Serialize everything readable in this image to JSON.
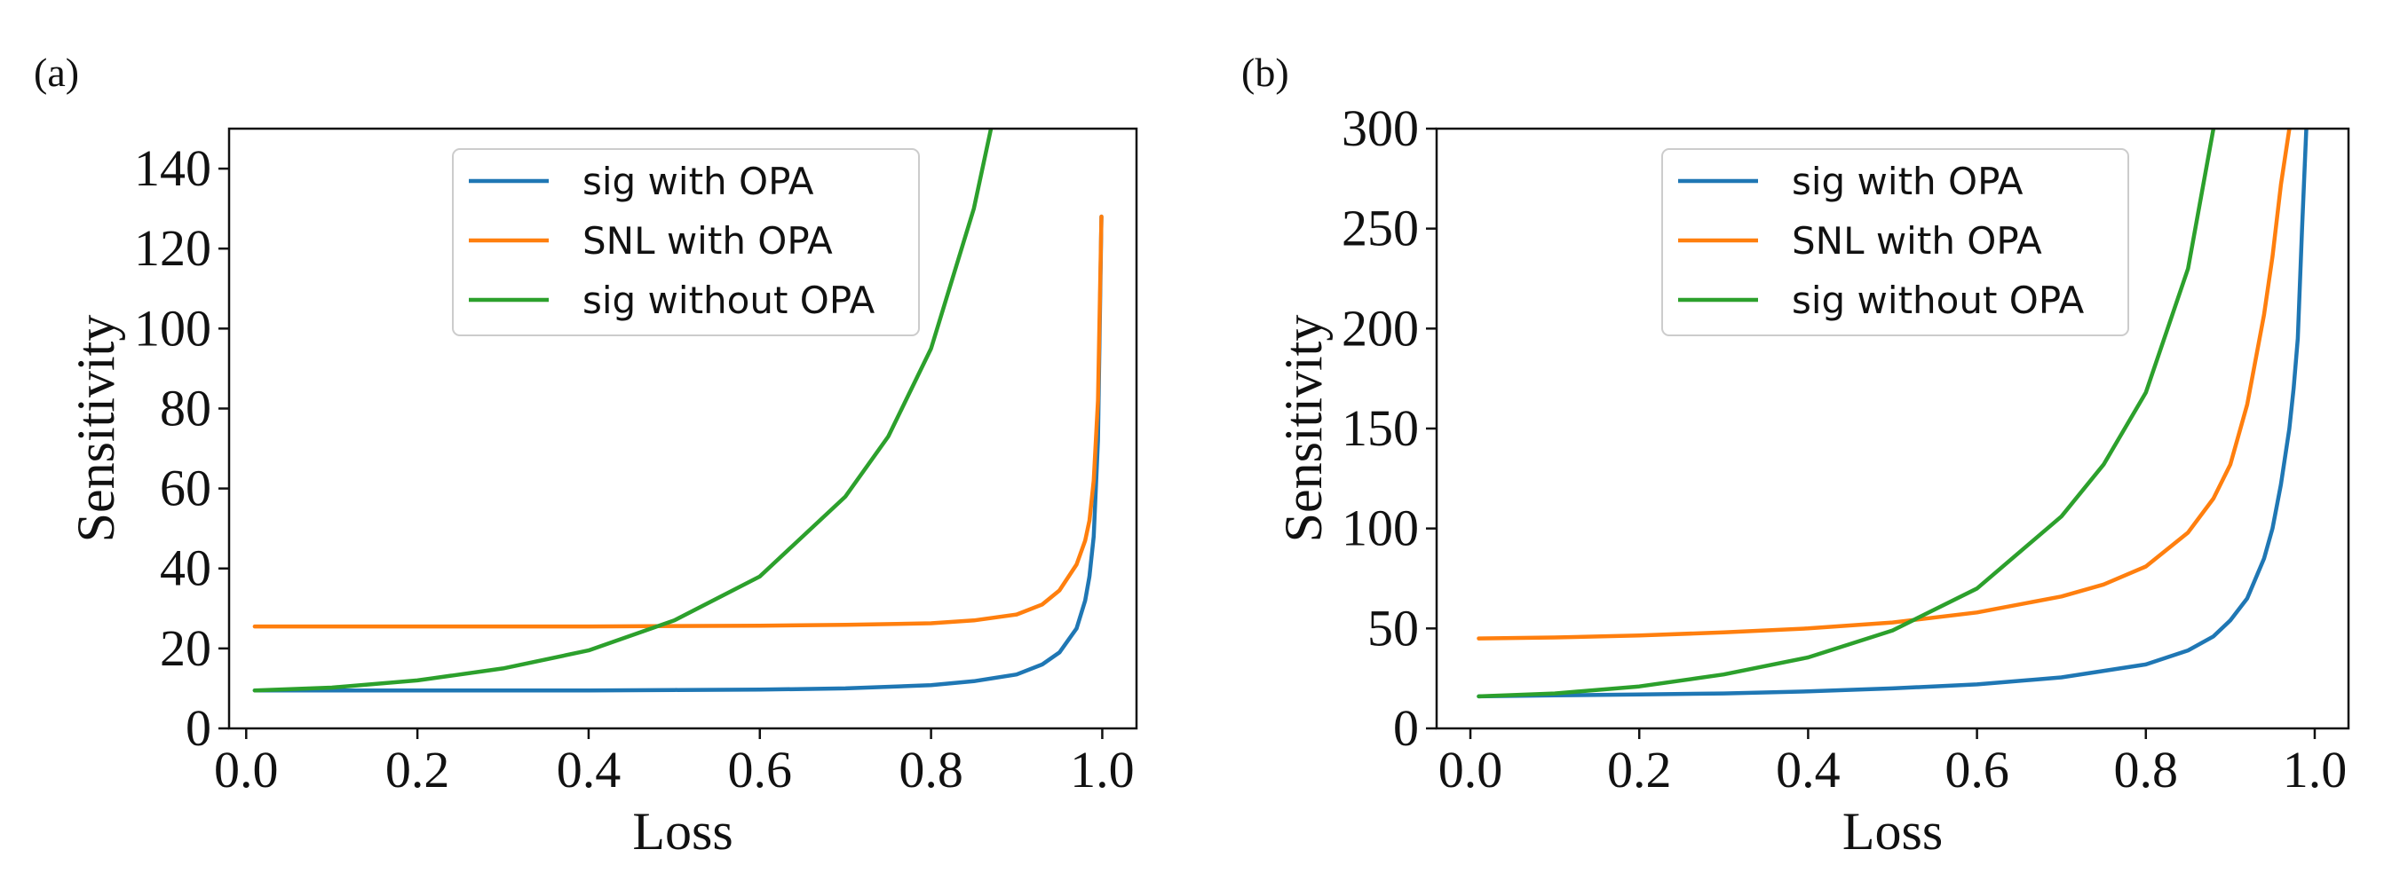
{
  "chart_data": [
    {
      "panel_label": "(a)",
      "type": "line",
      "xlabel": "Loss",
      "ylabel": "Sensitivity",
      "xlim": [
        -0.02,
        1.04
      ],
      "ylim": [
        0,
        150
      ],
      "xticks": [
        0.0,
        0.2,
        0.4,
        0.6,
        0.8,
        1.0
      ],
      "xtick_labels": [
        "0.0",
        "0.2",
        "0.4",
        "0.6",
        "0.8",
        "1.0"
      ],
      "yticks": [
        0,
        20,
        40,
        60,
        80,
        100,
        120,
        140
      ],
      "ytick_labels": [
        "0",
        "20",
        "40",
        "60",
        "80",
        "100",
        "120",
        "140"
      ],
      "legend_position": "top-center",
      "grid": false,
      "series": [
        {
          "name": "sig with OPA",
          "color": "#1f77b4",
          "x": [
            0.01,
            0.1,
            0.2,
            0.3,
            0.4,
            0.5,
            0.6,
            0.7,
            0.8,
            0.85,
            0.9,
            0.93,
            0.95,
            0.97,
            0.98,
            0.985,
            0.99,
            0.995,
            0.999
          ],
          "y": [
            9.5,
            9.5,
            9.5,
            9.5,
            9.5,
            9.6,
            9.7,
            10.0,
            10.8,
            11.8,
            13.5,
            16.0,
            19.0,
            25.0,
            32.0,
            38.0,
            48.0,
            72.0,
            128.0
          ]
        },
        {
          "name": "SNL with OPA",
          "color": "#ff7f0e",
          "x": [
            0.01,
            0.1,
            0.2,
            0.3,
            0.4,
            0.5,
            0.6,
            0.7,
            0.8,
            0.85,
            0.9,
            0.93,
            0.95,
            0.97,
            0.98,
            0.985,
            0.99,
            0.995,
            0.999
          ],
          "y": [
            25.5,
            25.5,
            25.5,
            25.5,
            25.5,
            25.6,
            25.7,
            25.9,
            26.3,
            27.0,
            28.5,
            31.0,
            34.5,
            41.0,
            47.0,
            52.0,
            62.0,
            82.0,
            128.0
          ]
        },
        {
          "name": "sig without OPA",
          "color": "#2ca02c",
          "x": [
            0.01,
            0.1,
            0.2,
            0.3,
            0.4,
            0.5,
            0.6,
            0.7,
            0.75,
            0.8,
            0.85,
            0.87
          ],
          "y": [
            9.5,
            10.2,
            12.0,
            15.0,
            19.5,
            27.0,
            38.0,
            58.0,
            73.0,
            95.0,
            130.0,
            150.0
          ]
        }
      ]
    },
    {
      "panel_label": "(b)",
      "type": "line",
      "xlabel": "Loss",
      "ylabel": "Sensitivity",
      "xlim": [
        -0.04,
        1.04
      ],
      "ylim": [
        0,
        300
      ],
      "xticks": [
        0.0,
        0.2,
        0.4,
        0.6,
        0.8,
        1.0
      ],
      "xtick_labels": [
        "0.0",
        "0.2",
        "0.4",
        "0.6",
        "0.8",
        "1.0"
      ],
      "yticks": [
        0,
        50,
        100,
        150,
        200,
        250,
        300
      ],
      "ytick_labels": [
        "0",
        "50",
        "100",
        "150",
        "200",
        "250",
        "300"
      ],
      "legend_position": "top-center",
      "grid": false,
      "series": [
        {
          "name": "sig with OPA",
          "color": "#1f77b4",
          "x": [
            0.01,
            0.1,
            0.2,
            0.3,
            0.4,
            0.5,
            0.6,
            0.7,
            0.8,
            0.85,
            0.88,
            0.9,
            0.92,
            0.94,
            0.95,
            0.96,
            0.97,
            0.975,
            0.98,
            0.985,
            0.99
          ],
          "y": [
            16,
            16.5,
            17,
            17.5,
            18.5,
            20,
            22,
            25.5,
            32,
            39,
            46,
            54,
            65,
            85,
            100,
            122,
            150,
            170,
            195,
            250,
            300
          ]
        },
        {
          "name": "SNL with OPA",
          "color": "#ff7f0e",
          "x": [
            0.01,
            0.1,
            0.2,
            0.3,
            0.4,
            0.5,
            0.6,
            0.7,
            0.75,
            0.8,
            0.85,
            0.88,
            0.9,
            0.92,
            0.94,
            0.95,
            0.96,
            0.97
          ],
          "y": [
            45,
            45.5,
            46.5,
            48,
            50,
            53,
            58,
            66,
            72,
            81,
            98,
            115,
            132,
            162,
            207,
            236,
            272,
            300
          ]
        },
        {
          "name": "sig without OPA",
          "color": "#2ca02c",
          "x": [
            0.01,
            0.1,
            0.2,
            0.3,
            0.4,
            0.5,
            0.6,
            0.7,
            0.75,
            0.8,
            0.85,
            0.88
          ],
          "y": [
            16,
            17.5,
            21,
            27,
            35.5,
            49,
            70,
            106,
            132,
            168,
            230,
            300
          ]
        }
      ]
    }
  ]
}
